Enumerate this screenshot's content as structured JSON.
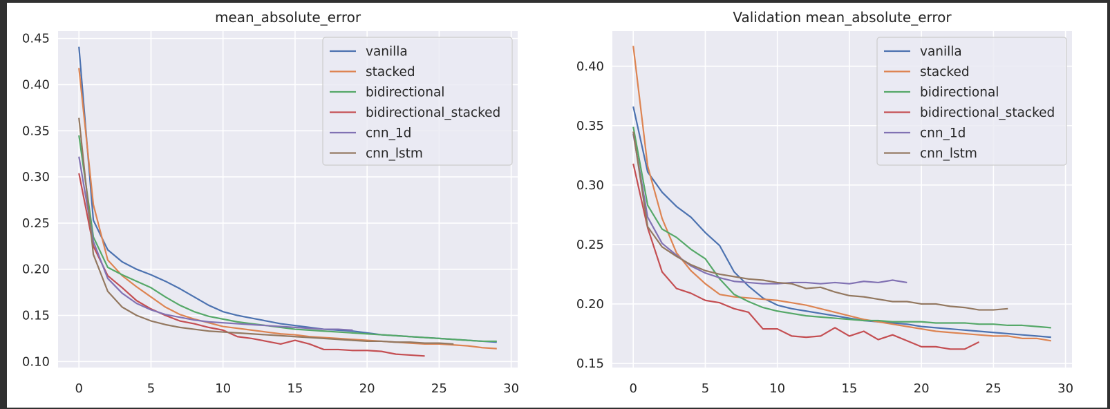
{
  "chart_data": [
    {
      "type": "line",
      "title": "mean_absolute_error",
      "xlabel": "",
      "ylabel": "",
      "xlim": [
        -1.45,
        30.45
      ],
      "ylim": [
        0.0935,
        0.458
      ],
      "xticks": [
        0,
        5,
        10,
        15,
        20,
        25,
        30
      ],
      "yticks": [
        0.1,
        0.15,
        0.2,
        0.25,
        0.3,
        0.35,
        0.4,
        0.45
      ],
      "ytick_labels": [
        "0.10",
        "0.15",
        "0.20",
        "0.25",
        "0.30",
        "0.35",
        "0.40",
        "0.45"
      ],
      "grid": true,
      "legend_position": "top-right",
      "series": [
        {
          "name": "vanilla",
          "color": "#4c72b0",
          "x": [
            0,
            1,
            2,
            3,
            4,
            5,
            6,
            7,
            8,
            9,
            10,
            11,
            12,
            13,
            14,
            15,
            16,
            17,
            18,
            19,
            20,
            21,
            22,
            23,
            24,
            25,
            26,
            27,
            28,
            29
          ],
          "values": [
            0.441,
            0.253,
            0.221,
            0.208,
            0.2,
            0.194,
            0.187,
            0.179,
            0.17,
            0.161,
            0.154,
            0.15,
            0.147,
            0.144,
            0.141,
            0.139,
            0.137,
            0.135,
            0.134,
            0.133,
            0.131,
            0.129,
            0.128,
            0.127,
            0.126,
            0.125,
            0.124,
            0.123,
            0.122,
            0.121
          ]
        },
        {
          "name": "stacked",
          "color": "#dd8452",
          "x": [
            0,
            1,
            2,
            3,
            4,
            5,
            6,
            7,
            8,
            9,
            10,
            11,
            12,
            13,
            14,
            15,
            16,
            17,
            18,
            19,
            20,
            21,
            22,
            23,
            24,
            25,
            26,
            27,
            28,
            29
          ],
          "values": [
            0.418,
            0.27,
            0.21,
            0.193,
            0.181,
            0.17,
            0.159,
            0.151,
            0.146,
            0.142,
            0.138,
            0.136,
            0.134,
            0.132,
            0.13,
            0.129,
            0.127,
            0.126,
            0.125,
            0.124,
            0.123,
            0.122,
            0.121,
            0.12,
            0.119,
            0.119,
            0.118,
            0.117,
            0.115,
            0.114
          ]
        },
        {
          "name": "bidirectional",
          "color": "#55a868",
          "x": [
            0,
            1,
            2,
            3,
            4,
            5,
            6,
            7,
            8,
            9,
            10,
            11,
            12,
            13,
            14,
            15,
            16,
            17,
            18,
            19,
            20,
            21,
            22,
            23,
            24,
            25,
            26,
            27,
            28,
            29
          ],
          "values": [
            0.345,
            0.235,
            0.202,
            0.194,
            0.187,
            0.18,
            0.17,
            0.161,
            0.154,
            0.149,
            0.146,
            0.143,
            0.141,
            0.139,
            0.137,
            0.135,
            0.134,
            0.133,
            0.132,
            0.131,
            0.13,
            0.129,
            0.128,
            0.127,
            0.126,
            0.125,
            0.124,
            0.123,
            0.122,
            0.122
          ]
        },
        {
          "name": "bidirectional_stacked",
          "color": "#c44e52",
          "x": [
            0,
            1,
            2,
            3,
            4,
            5,
            6,
            7,
            8,
            9,
            10,
            11,
            12,
            13,
            14,
            15,
            16,
            17,
            18,
            19,
            20,
            21,
            22,
            23,
            24
          ],
          "values": [
            0.304,
            0.225,
            0.193,
            0.18,
            0.166,
            0.157,
            0.15,
            0.144,
            0.141,
            0.137,
            0.134,
            0.127,
            0.125,
            0.122,
            0.119,
            0.123,
            0.119,
            0.113,
            0.113,
            0.112,
            0.112,
            0.111,
            0.108,
            0.107,
            0.106
          ]
        },
        {
          "name": "cnn_1d",
          "color": "#8172b3",
          "x": [
            0,
            1,
            2,
            3,
            4,
            5,
            6,
            7,
            8,
            9,
            10,
            11,
            12,
            13,
            14,
            15,
            16,
            17,
            18,
            19
          ],
          "values": [
            0.322,
            0.23,
            0.19,
            0.174,
            0.163,
            0.156,
            0.151,
            0.148,
            0.145,
            0.143,
            0.142,
            0.141,
            0.14,
            0.139,
            0.138,
            0.137,
            0.136,
            0.135,
            0.135,
            0.134
          ]
        },
        {
          "name": "cnn_lstm",
          "color": "#937860",
          "x": [
            0,
            1,
            2,
            3,
            4,
            5,
            6,
            7,
            8,
            9,
            10,
            11,
            12,
            13,
            14,
            15,
            16,
            17,
            18,
            19,
            20,
            21,
            22,
            23,
            24,
            25,
            26
          ],
          "values": [
            0.364,
            0.216,
            0.176,
            0.159,
            0.15,
            0.144,
            0.14,
            0.137,
            0.135,
            0.133,
            0.132,
            0.131,
            0.13,
            0.129,
            0.128,
            0.127,
            0.126,
            0.125,
            0.124,
            0.123,
            0.122,
            0.122,
            0.121,
            0.121,
            0.12,
            0.12,
            0.119
          ]
        }
      ]
    },
    {
      "type": "line",
      "title": "Validation mean_absolute_error",
      "xlabel": "",
      "ylabel": "",
      "xlim": [
        -1.45,
        30.45
      ],
      "ylim": [
        0.1465,
        0.4295
      ],
      "xticks": [
        0,
        5,
        10,
        15,
        20,
        25,
        30
      ],
      "yticks": [
        0.15,
        0.2,
        0.25,
        0.3,
        0.35,
        0.4
      ],
      "ytick_labels": [
        "0.15",
        "0.20",
        "0.25",
        "0.30",
        "0.35",
        "0.40"
      ],
      "grid": true,
      "legend_position": "top-right",
      "series": [
        {
          "name": "vanilla",
          "color": "#4c72b0",
          "x": [
            0,
            1,
            2,
            3,
            4,
            5,
            6,
            7,
            8,
            9,
            10,
            11,
            12,
            13,
            14,
            15,
            16,
            17,
            18,
            19,
            20,
            21,
            22,
            23,
            24,
            25,
            26,
            27,
            28,
            29
          ],
          "values": [
            0.366,
            0.311,
            0.294,
            0.282,
            0.273,
            0.26,
            0.249,
            0.227,
            0.215,
            0.205,
            0.199,
            0.196,
            0.194,
            0.192,
            0.19,
            0.188,
            0.186,
            0.185,
            0.184,
            0.183,
            0.181,
            0.18,
            0.179,
            0.178,
            0.177,
            0.176,
            0.175,
            0.174,
            0.173,
            0.172
          ]
        },
        {
          "name": "stacked",
          "color": "#dd8452",
          "x": [
            0,
            1,
            2,
            3,
            4,
            5,
            6,
            7,
            8,
            9,
            10,
            11,
            12,
            13,
            14,
            15,
            16,
            17,
            18,
            19,
            20,
            21,
            22,
            23,
            24,
            25,
            26,
            27,
            28,
            29
          ],
          "values": [
            0.417,
            0.316,
            0.272,
            0.243,
            0.228,
            0.217,
            0.208,
            0.206,
            0.205,
            0.204,
            0.203,
            0.201,
            0.199,
            0.196,
            0.193,
            0.19,
            0.187,
            0.185,
            0.183,
            0.181,
            0.179,
            0.177,
            0.176,
            0.175,
            0.174,
            0.173,
            0.173,
            0.171,
            0.171,
            0.169
          ]
        },
        {
          "name": "bidirectional",
          "color": "#55a868",
          "x": [
            0,
            1,
            2,
            3,
            4,
            5,
            6,
            7,
            8,
            9,
            10,
            11,
            12,
            13,
            14,
            15,
            16,
            17,
            18,
            19,
            20,
            21,
            22,
            23,
            24,
            25,
            26,
            27,
            28,
            29
          ],
          "values": [
            0.349,
            0.283,
            0.263,
            0.256,
            0.246,
            0.238,
            0.221,
            0.208,
            0.202,
            0.197,
            0.194,
            0.192,
            0.19,
            0.189,
            0.188,
            0.187,
            0.186,
            0.186,
            0.185,
            0.185,
            0.185,
            0.184,
            0.184,
            0.184,
            0.183,
            0.183,
            0.182,
            0.182,
            0.181,
            0.18
          ]
        },
        {
          "name": "bidirectional_stacked",
          "color": "#c44e52",
          "x": [
            0,
            1,
            2,
            3,
            4,
            5,
            6,
            7,
            8,
            9,
            10,
            11,
            12,
            13,
            14,
            15,
            16,
            17,
            18,
            19,
            20,
            21,
            22,
            23,
            24
          ],
          "values": [
            0.318,
            0.264,
            0.227,
            0.213,
            0.209,
            0.203,
            0.201,
            0.196,
            0.193,
            0.179,
            0.179,
            0.173,
            0.172,
            0.173,
            0.18,
            0.173,
            0.177,
            0.17,
            0.174,
            0.169,
            0.164,
            0.164,
            0.162,
            0.162,
            0.168
          ]
        },
        {
          "name": "cnn_1d",
          "color": "#8172b3",
          "x": [
            0,
            1,
            2,
            3,
            4,
            5,
            6,
            7,
            8,
            9,
            10,
            11,
            12,
            13,
            14,
            15,
            16,
            17,
            18,
            19
          ],
          "values": [
            0.343,
            0.273,
            0.251,
            0.241,
            0.232,
            0.226,
            0.222,
            0.219,
            0.218,
            0.217,
            0.217,
            0.218,
            0.218,
            0.217,
            0.218,
            0.217,
            0.219,
            0.218,
            0.22,
            0.218
          ]
        },
        {
          "name": "cnn_lstm",
          "color": "#937860",
          "x": [
            0,
            1,
            2,
            3,
            4,
            5,
            6,
            7,
            8,
            9,
            10,
            11,
            12,
            13,
            14,
            15,
            16,
            17,
            18,
            19,
            20,
            21,
            22,
            23,
            24,
            25,
            26
          ],
          "values": [
            0.345,
            0.265,
            0.248,
            0.24,
            0.233,
            0.228,
            0.225,
            0.223,
            0.221,
            0.22,
            0.218,
            0.217,
            0.213,
            0.214,
            0.21,
            0.207,
            0.206,
            0.204,
            0.202,
            0.202,
            0.2,
            0.2,
            0.198,
            0.197,
            0.195,
            0.195,
            0.196
          ]
        }
      ]
    }
  ]
}
